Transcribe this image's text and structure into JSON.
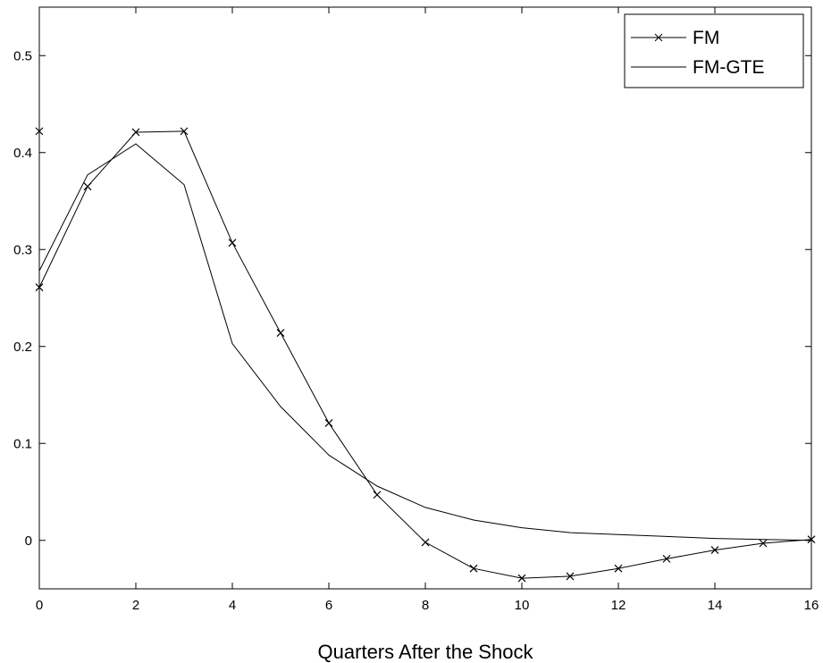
{
  "chart_data": {
    "type": "line",
    "title": "",
    "xlabel": "Quarters After the Shock",
    "ylabel": "",
    "xlim": [
      0,
      16
    ],
    "ylim": [
      -0.05,
      0.55
    ],
    "xticks": [
      0,
      2,
      4,
      6,
      8,
      10,
      12,
      14,
      16
    ],
    "yticks": [
      0,
      0.1,
      0.2,
      0.3,
      0.4,
      0.5
    ],
    "xtick_labels": [
      "0",
      "2",
      "4",
      "6",
      "8",
      "10",
      "12",
      "14",
      "16"
    ],
    "ytick_labels": [
      "0",
      "0.1",
      "0.2",
      "0.3",
      "0.4",
      "0.5"
    ],
    "grid": false,
    "legend_position": "top-right",
    "series": [
      {
        "name": "FM",
        "marker": "x",
        "x": [
          0,
          1,
          2,
          3,
          4,
          5,
          6,
          7,
          8,
          9,
          10,
          11,
          12,
          13,
          14,
          15,
          16
        ],
        "y": [
          0.261,
          0.365,
          0.421,
          0.422,
          0.307,
          0.214,
          0.121,
          0.047,
          -0.002,
          -0.029,
          -0.039,
          -0.037,
          -0.029,
          -0.019,
          -0.01,
          -0.003,
          0.001
        ]
      },
      {
        "name": "FM-GTE",
        "marker": "none",
        "x": [
          0,
          1,
          2,
          3,
          4,
          5,
          6,
          7,
          8,
          9,
          10,
          11,
          12,
          13,
          14,
          15,
          16
        ],
        "y": [
          0.278,
          0.377,
          0.409,
          0.367,
          0.203,
          0.138,
          0.088,
          0.056,
          0.034,
          0.021,
          0.013,
          0.008,
          0.006,
          0.004,
          0.002,
          0.001,
          0.0
        ]
      }
    ],
    "annotations": [
      {
        "marker": "x",
        "x": 0,
        "y": 0.422
      }
    ]
  }
}
